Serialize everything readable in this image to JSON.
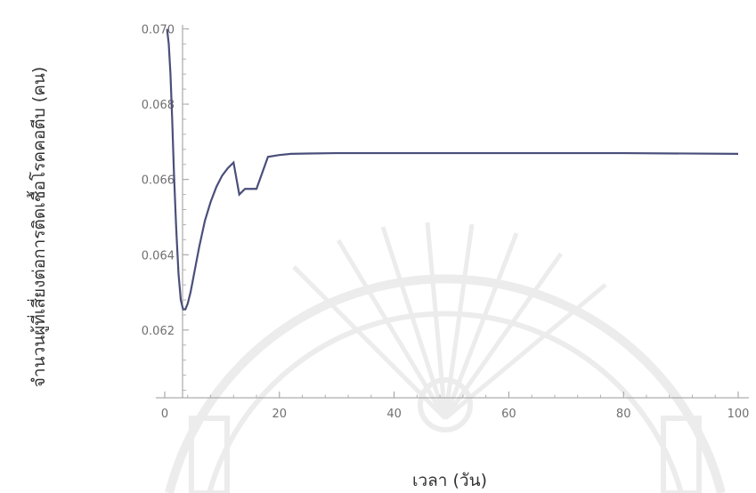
{
  "chart_data": {
    "type": "line",
    "xlabel": "เวลา (วัน)",
    "ylabel": "จำนวนผู้ที่เสี่ยงต่อการติดเชื้อโรคคอตีบ (คน)",
    "xlim": [
      0,
      100
    ],
    "ylim": [
      0.0602,
      0.0702
    ],
    "x_ticks": [
      0,
      20,
      40,
      60,
      80,
      100
    ],
    "x_tick_labels": [
      "0",
      "20",
      "40",
      "60",
      "80",
      "100"
    ],
    "y_ticks": [
      0.062,
      0.064,
      0.066,
      0.068,
      0.07
    ],
    "y_tick_labels": [
      "0.062",
      "0.064",
      "0.066",
      "0.068",
      "0.070"
    ],
    "grid": false,
    "series": [
      {
        "color": "#4a4f7a",
        "x": [
          0.4,
          0.7,
          1.0,
          1.3,
          1.6,
          2.0,
          2.4,
          2.8,
          3.2,
          3.6,
          4.0,
          4.5,
          5.0,
          5.5,
          6.0,
          7.0,
          8.0,
          9.0,
          10.0,
          11.0,
          12.0,
          13.0,
          14.0,
          16.0,
          18.0,
          20.0,
          22.0,
          25.0,
          30.0,
          40.0,
          60.0,
          80.0,
          100.0
        ],
        "y": [
          0.07,
          0.0696,
          0.0688,
          0.0676,
          0.0662,
          0.0647,
          0.0635,
          0.0628,
          0.06255,
          0.06255,
          0.0627,
          0.063,
          0.0634,
          0.0638,
          0.0642,
          0.0649,
          0.0654,
          0.0658,
          0.0661,
          0.0663,
          0.06645,
          0.0656,
          0.06575,
          0.06575,
          0.0666,
          0.06665,
          0.06668,
          0.06669,
          0.0667,
          0.0667,
          0.0667,
          0.0667,
          0.06668
        ]
      }
    ]
  }
}
